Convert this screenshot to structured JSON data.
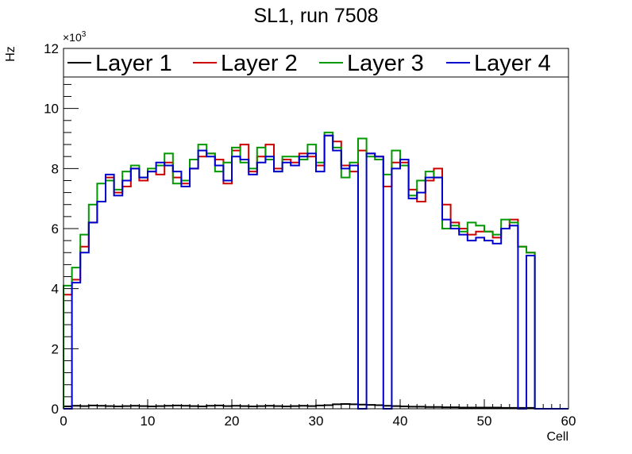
{
  "chart_data": {
    "type": "step-histogram",
    "title": "SL1, run 7508",
    "xlabel": "Cell",
    "ylabel": "Hz",
    "y_multiplier_label": "×10",
    "y_multiplier_exponent": "3",
    "xlim": [
      0,
      60
    ],
    "ylim": [
      0,
      12000
    ],
    "bin_width": 1,
    "x_ticks": [
      0,
      10,
      20,
      30,
      40,
      50,
      60
    ],
    "x_tick_labels": [
      "0",
      "10",
      "20",
      "30",
      "40",
      "50",
      "60"
    ],
    "y_ticks": [
      0,
      2000,
      4000,
      6000,
      8000,
      10000,
      12000
    ],
    "y_tick_labels": [
      "0",
      "2",
      "4",
      "6",
      "8",
      "10",
      "12"
    ],
    "legend_position": "top",
    "series": [
      {
        "name": "Layer 1",
        "color": "#000000",
        "values": [
          80,
          100,
          90,
          110,
          100,
          90,
          80,
          90,
          100,
          90,
          80,
          90,
          100,
          110,
          100,
          90,
          80,
          100,
          110,
          90,
          100,
          90,
          80,
          90,
          100,
          90,
          80,
          90,
          100,
          90,
          110,
          120,
          150,
          160,
          150,
          140,
          130,
          120,
          100,
          90,
          80,
          70,
          70,
          60,
          60,
          50,
          50,
          40,
          40,
          40,
          40,
          40,
          30,
          30,
          30,
          30,
          0,
          0,
          0,
          0
        ]
      },
      {
        "name": "Layer 2",
        "color": "#cc0000",
        "values": [
          3800,
          4300,
          5400,
          6200,
          6900,
          7700,
          7200,
          7400,
          8000,
          7600,
          7900,
          7800,
          8200,
          7700,
          7500,
          8000,
          8400,
          8500,
          8300,
          7500,
          8600,
          8800,
          7900,
          8400,
          8800,
          8000,
          8300,
          8200,
          8500,
          8400,
          8100,
          9100,
          8900,
          8100,
          7900,
          8600,
          8500,
          8400,
          7400,
          8200,
          8200,
          7300,
          6900,
          7600,
          8000,
          6800,
          6200,
          6000,
          5800,
          5900,
          5900,
          5700,
          6000,
          6300,
          5400,
          5200,
          0,
          0,
          0,
          0
        ]
      },
      {
        "name": "Layer 3",
        "color": "#009900",
        "values": [
          4100,
          4700,
          5800,
          6800,
          7500,
          7600,
          7300,
          7900,
          8100,
          7700,
          8000,
          8100,
          8500,
          7500,
          7600,
          8300,
          8800,
          8500,
          7900,
          8200,
          8700,
          8200,
          8000,
          8700,
          8300,
          7900,
          8400,
          8400,
          8300,
          8800,
          8200,
          9200,
          8700,
          7700,
          8200,
          9000,
          8400,
          8300,
          7800,
          8600,
          8100,
          7100,
          7600,
          7900,
          7700,
          6000,
          6100,
          5900,
          6200,
          6100,
          5900,
          5800,
          6300,
          6200,
          5400,
          5200,
          0,
          0,
          0,
          0
        ]
      },
      {
        "name": "Layer 4",
        "color": "#0000cc",
        "values": [
          0,
          4200,
          5200,
          6200,
          6900,
          7800,
          7100,
          7600,
          8000,
          7700,
          7900,
          8200,
          8100,
          7900,
          7400,
          8000,
          8600,
          8400,
          8100,
          7600,
          8400,
          8300,
          7800,
          8200,
          8400,
          7900,
          8200,
          8100,
          8400,
          8500,
          7900,
          9100,
          8600,
          8000,
          8100,
          0,
          8500,
          8400,
          0,
          8000,
          8300,
          7000,
          7200,
          7700,
          7700,
          6300,
          6000,
          5800,
          5600,
          5700,
          5600,
          5500,
          6000,
          6100,
          0,
          5100,
          0,
          0,
          0,
          0
        ]
      }
    ]
  }
}
